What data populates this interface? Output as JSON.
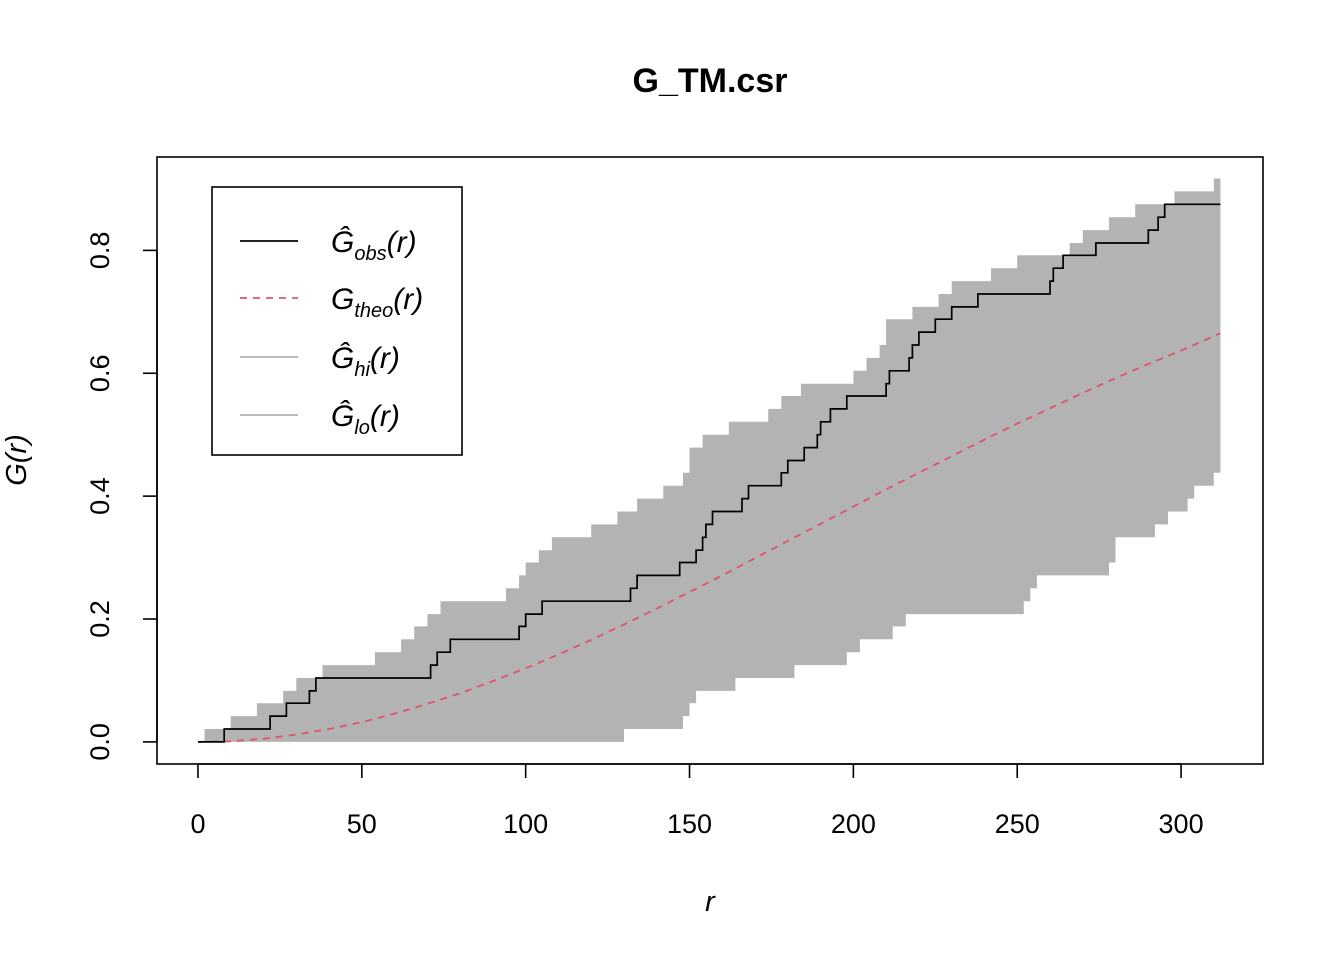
{
  "chart_data": {
    "type": "line",
    "title": "G_TM.csr",
    "xlabel": "r",
    "ylabel": "G(r)",
    "xlim": [
      -12.5,
      325
    ],
    "ylim": [
      -0.036,
      0.952
    ],
    "x_ticks": [
      "0",
      "50",
      "100",
      "150",
      "200",
      "250",
      "300"
    ],
    "x_tick_values": [
      0,
      50,
      100,
      150,
      200,
      250,
      300
    ],
    "y_ticks": [
      "0.0",
      "0.2",
      "0.4",
      "0.6",
      "0.8"
    ],
    "y_tick_values": [
      0,
      0.2,
      0.4,
      0.6,
      0.8
    ],
    "legend": {
      "position": "top-left",
      "entries": [
        {
          "base": "Ĝ",
          "sub": "obs",
          "arg": "(r)",
          "style": "solid",
          "color": "#000000"
        },
        {
          "base": "G",
          "sub": "theo",
          "arg": "(r)",
          "style": "dashed",
          "color": "#DF536B"
        },
        {
          "base": "Ĝ",
          "sub": "hi",
          "arg": "(r)",
          "style": "solid",
          "color": "#B3B3B3"
        },
        {
          "base": "Ĝ",
          "sub": "lo",
          "arg": "(r)",
          "style": "solid",
          "color": "#B3B3B3"
        }
      ]
    },
    "series": [
      {
        "name": "obs",
        "color": "#000000",
        "style": "step",
        "x": [
          0,
          7,
          8,
          20,
          22,
          25,
          27,
          32,
          34,
          36,
          69,
          71,
          73,
          75,
          77,
          96,
          98,
          100,
          103,
          105,
          130,
          132,
          134,
          145,
          147,
          151,
          152,
          154,
          155,
          156,
          157,
          165,
          166,
          167,
          168,
          177,
          178,
          179,
          180,
          184,
          185,
          188,
          189,
          190,
          191,
          193,
          195,
          198,
          203,
          210,
          211,
          215,
          217,
          218,
          219,
          220,
          223,
          225,
          229,
          230,
          233,
          235,
          238,
          242,
          244,
          246,
          260,
          261,
          262,
          264,
          266,
          268,
          274,
          276,
          290,
          291,
          293,
          294,
          295,
          296,
          298,
          312
        ],
        "y": [
          0,
          0,
          0.021,
          0.021,
          0.042,
          0.042,
          0.063,
          0.063,
          0.083,
          0.104,
          0.104,
          0.125,
          0.146,
          0.146,
          0.167,
          0.167,
          0.188,
          0.208,
          0.208,
          0.229,
          0.229,
          0.25,
          0.271,
          0.271,
          0.292,
          0.292,
          0.312,
          0.333,
          0.354,
          0.354,
          0.375,
          0.375,
          0.396,
          0.396,
          0.417,
          0.417,
          0.438,
          0.438,
          0.458,
          0.458,
          0.479,
          0.479,
          0.5,
          0.521,
          0.521,
          0.542,
          0.542,
          0.563,
          0.563,
          0.583,
          0.604,
          0.604,
          0.625,
          0.646,
          0.646,
          0.667,
          0.667,
          0.688,
          0.688,
          0.708,
          0.708,
          0.708,
          0.729,
          0.729,
          0.729,
          0.729,
          0.75,
          0.771,
          0.771,
          0.792,
          0.792,
          0.792,
          0.812,
          0.812,
          0.833,
          0.833,
          0.854,
          0.854,
          0.875,
          0.875,
          0.875,
          0.875
        ]
      },
      {
        "name": "theo",
        "color": "#DF536B",
        "style": "dashed",
        "x": [
          0,
          10,
          20,
          30,
          40,
          50,
          60,
          70,
          80,
          90,
          100,
          110,
          120,
          130,
          140,
          150,
          160,
          170,
          180,
          190,
          200,
          210,
          220,
          230,
          240,
          250,
          260,
          270,
          280,
          290,
          300,
          312
        ],
        "y": [
          0,
          0.001,
          0.005,
          0.012,
          0.021,
          0.032,
          0.046,
          0.062,
          0.079,
          0.099,
          0.12,
          0.142,
          0.166,
          0.191,
          0.217,
          0.244,
          0.271,
          0.299,
          0.327,
          0.355,
          0.383,
          0.411,
          0.438,
          0.465,
          0.492,
          0.518,
          0.543,
          0.568,
          0.592,
          0.615,
          0.637,
          0.665
        ]
      },
      {
        "name": "hi",
        "color": "#B3B3B3",
        "style": "step",
        "x": [
          0,
          2,
          4,
          8,
          10,
          14,
          18,
          22,
          26,
          30,
          34,
          38,
          42,
          46,
          50,
          54,
          58,
          62,
          64,
          66,
          68,
          70,
          72,
          74,
          78,
          82,
          86,
          90,
          94,
          96,
          98,
          100,
          104,
          108,
          112,
          116,
          120,
          124,
          128,
          130,
          132,
          134,
          136,
          138,
          142,
          146,
          148,
          150,
          154,
          158,
          162,
          166,
          170,
          174,
          178,
          180,
          184,
          188,
          192,
          196,
          200,
          204,
          206,
          208,
          210,
          214,
          218,
          222,
          226,
          230,
          234,
          238,
          242,
          246,
          250,
          254,
          258,
          262,
          266,
          270,
          274,
          278,
          282,
          286,
          290,
          294,
          298,
          302,
          306,
          310,
          312
        ],
        "y": [
          0,
          0.021,
          0.021,
          0.021,
          0.042,
          0.042,
          0.063,
          0.063,
          0.083,
          0.104,
          0.104,
          0.125,
          0.125,
          0.125,
          0.125,
          0.146,
          0.146,
          0.167,
          0.167,
          0.188,
          0.188,
          0.208,
          0.208,
          0.229,
          0.229,
          0.229,
          0.229,
          0.229,
          0.25,
          0.25,
          0.271,
          0.292,
          0.312,
          0.333,
          0.333,
          0.333,
          0.354,
          0.354,
          0.375,
          0.375,
          0.375,
          0.396,
          0.396,
          0.396,
          0.417,
          0.417,
          0.438,
          0.479,
          0.5,
          0.5,
          0.521,
          0.521,
          0.521,
          0.542,
          0.563,
          0.563,
          0.583,
          0.583,
          0.583,
          0.583,
          0.604,
          0.625,
          0.625,
          0.646,
          0.688,
          0.688,
          0.708,
          0.708,
          0.729,
          0.75,
          0.75,
          0.75,
          0.771,
          0.771,
          0.792,
          0.792,
          0.792,
          0.792,
          0.812,
          0.833,
          0.833,
          0.854,
          0.854,
          0.875,
          0.875,
          0.875,
          0.896,
          0.896,
          0.896,
          0.917,
          0.917
        ]
      },
      {
        "name": "lo",
        "color": "#B3B3B3",
        "style": "step",
        "x": [
          0,
          40,
          80,
          120,
          128,
          130,
          132,
          140,
          146,
          148,
          150,
          152,
          156,
          160,
          164,
          166,
          170,
          174,
          180,
          182,
          184,
          190,
          196,
          198,
          200,
          202,
          204,
          208,
          212,
          216,
          220,
          224,
          228,
          232,
          236,
          240,
          244,
          250,
          252,
          254,
          256,
          260,
          264,
          268,
          272,
          276,
          278,
          280,
          284,
          288,
          290,
          292,
          296,
          300,
          302,
          304,
          308,
          310,
          312
        ],
        "y": [
          0,
          0,
          0,
          0,
          0,
          0.021,
          0.021,
          0.021,
          0.021,
          0.042,
          0.063,
          0.083,
          0.083,
          0.083,
          0.104,
          0.104,
          0.104,
          0.104,
          0.104,
          0.125,
          0.125,
          0.125,
          0.125,
          0.146,
          0.146,
          0.167,
          0.167,
          0.167,
          0.188,
          0.208,
          0.208,
          0.208,
          0.208,
          0.208,
          0.208,
          0.208,
          0.208,
          0.208,
          0.229,
          0.25,
          0.271,
          0.271,
          0.271,
          0.271,
          0.271,
          0.271,
          0.292,
          0.333,
          0.333,
          0.333,
          0.333,
          0.354,
          0.375,
          0.375,
          0.396,
          0.417,
          0.417,
          0.438,
          0.458
        ]
      }
    ],
    "band": {
      "lower": "lo",
      "upper": "hi",
      "color": "#B3B3B3"
    }
  }
}
